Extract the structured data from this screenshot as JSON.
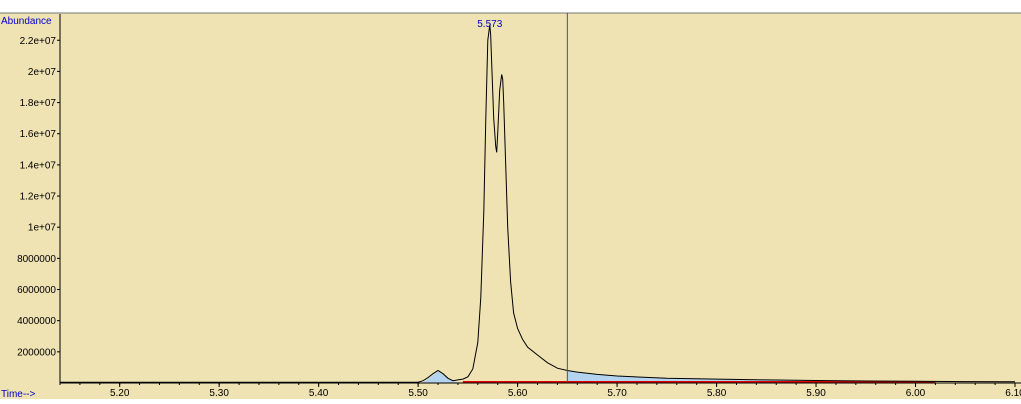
{
  "chart_data": {
    "type": "line",
    "ylabel": "Abundance",
    "xlabel": "Time-->",
    "peak_label": "5.573",
    "xlim": [
      5.14,
      6.1
    ],
    "ylim": [
      0,
      23300000
    ],
    "x_ticks": [
      5.2,
      5.3,
      5.4,
      5.5,
      5.6,
      5.7,
      5.8,
      5.9,
      6.0,
      6.1
    ],
    "x_tick_labels": [
      "5.20",
      "5.30",
      "5.40",
      "5.50",
      "5.60",
      "5.70",
      "5.80",
      "5.90",
      "6.00",
      "6.10"
    ],
    "y_ticks": [
      2000000,
      4000000,
      6000000,
      8000000,
      10000000,
      12000000,
      14000000,
      16000000,
      18000000,
      20000000,
      22000000
    ],
    "y_tick_labels": [
      "2000000",
      "4000000",
      "6000000",
      "8000000",
      "1e+07",
      "1.2e+07",
      "1.4e+07",
      "1.6e+07",
      "1.8e+07",
      "2e+07",
      "2.2e+07"
    ],
    "cursor_x": 5.65,
    "integration_baseline": [
      5.545,
      6.02
    ],
    "series": [
      {
        "x": [
          5.14,
          5.5,
          5.505,
          5.51,
          5.515,
          5.52,
          5.525,
          5.53,
          5.535,
          5.54,
          5.545,
          5.55,
          5.555,
          5.56,
          5.563,
          5.566,
          5.568,
          5.57,
          5.572,
          5.573,
          5.574,
          5.576,
          5.578,
          5.579,
          5.58,
          5.582,
          5.584,
          5.585,
          5.586,
          5.588,
          5.59,
          5.593,
          5.596,
          5.6,
          5.605,
          5.61,
          5.62,
          5.63,
          5.64,
          5.65,
          5.66,
          5.68,
          5.7,
          5.75,
          5.8,
          5.85,
          5.9,
          5.95,
          6.0,
          6.05,
          6.1
        ],
        "y": [
          50000,
          50000,
          150000,
          350000,
          600000,
          800000,
          600000,
          300000,
          150000,
          200000,
          250000,
          400000,
          900000,
          2600000,
          5500000,
          11000000,
          17000000,
          22000000,
          23000000,
          22300000,
          20500000,
          17000000,
          15200000,
          14800000,
          16000000,
          18800000,
          19800000,
          19500000,
          18000000,
          14000000,
          10000000,
          6500000,
          4500000,
          3500000,
          2800000,
          2300000,
          1800000,
          1300000,
          950000,
          800000,
          700000,
          550000,
          450000,
          300000,
          250000,
          200000,
          160000,
          130000,
          110000,
          90000,
          80000
        ]
      }
    ],
    "shaded_peaks": [
      {
        "x": [
          5.505,
          5.515,
          5.52,
          5.53,
          5.54
        ],
        "y": [
          50000,
          500000,
          750000,
          300000,
          50000
        ]
      },
      {
        "x": [
          5.65,
          5.66,
          5.68,
          5.7,
          5.75,
          5.8,
          5.85,
          5.9,
          5.95,
          6.0,
          6.02
        ],
        "y": [
          800000,
          700000,
          550000,
          450000,
          300000,
          250000,
          200000,
          160000,
          130000,
          110000,
          100000
        ]
      }
    ],
    "colors": {
      "plot_bg": "#efe2b3",
      "trace": "#000000",
      "peak_label": "#0000cc",
      "axis_title": "#0000cc",
      "baseline": "#dd0000",
      "peak_fill": "#b4d3ee",
      "cursor": "#555555"
    }
  }
}
